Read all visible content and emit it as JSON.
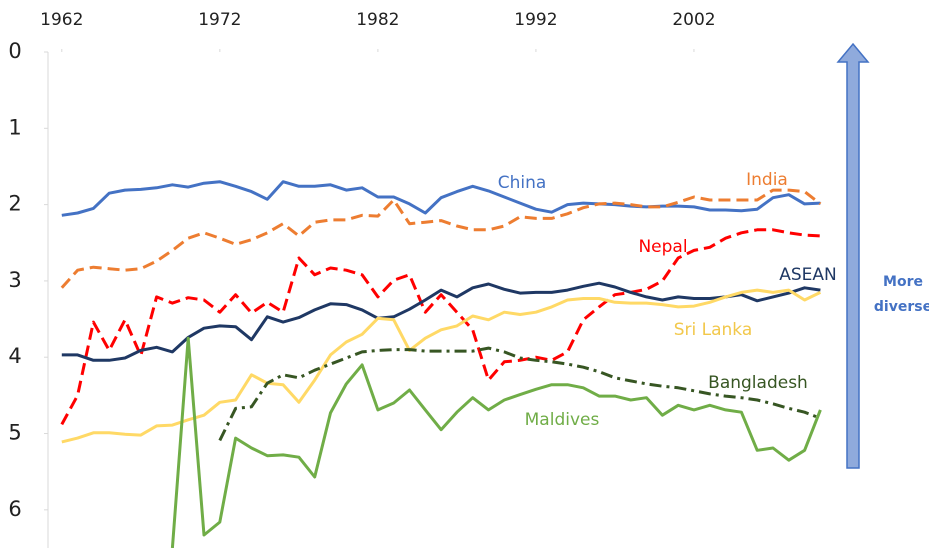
{
  "chart_data": {
    "type": "line",
    "x": [
      1962,
      1963,
      1964,
      1965,
      1966,
      1967,
      1968,
      1969,
      1970,
      1971,
      1972,
      1973,
      1974,
      1975,
      1976,
      1977,
      1978,
      1979,
      1980,
      1981,
      1982,
      1983,
      1984,
      1985,
      1986,
      1987,
      1988,
      1989,
      1990,
      1991,
      1992,
      1993,
      1994,
      1995,
      1996,
      1997,
      1998,
      1999,
      2000,
      2001,
      2002,
      2003,
      2004,
      2005,
      2006,
      2007,
      2008,
      2009,
      2010
    ],
    "xlim": [
      1961,
      2012
    ],
    "xticks": [
      1962,
      1972,
      1982,
      1992,
      2002
    ],
    "ylim": [
      0,
      6.5
    ],
    "yticks": [
      0,
      1,
      2,
      3,
      4,
      5,
      6
    ],
    "y_inverted": true,
    "arrow_label": [
      "More",
      "diverse"
    ],
    "series": [
      {
        "name": "China",
        "color": "#4472c4",
        "style": "solid",
        "values": [
          2.14,
          2.11,
          2.05,
          1.85,
          1.81,
          1.8,
          1.78,
          1.74,
          1.77,
          1.72,
          1.7,
          1.76,
          1.83,
          1.93,
          1.7,
          1.76,
          1.76,
          1.74,
          1.81,
          1.78,
          1.9,
          1.9,
          1.99,
          2.11,
          1.91,
          1.83,
          1.76,
          1.82,
          1.9,
          1.98,
          2.06,
          2.1,
          2.0,
          1.98,
          1.99,
          2.0,
          2.02,
          2.03,
          2.02,
          2.02,
          2.03,
          2.07,
          2.07,
          2.08,
          2.06,
          1.91,
          1.87,
          1.99,
          1.98
        ]
      },
      {
        "name": "India",
        "color": "#ed7d31",
        "style": "dashed",
        "values": [
          3.09,
          2.86,
          2.82,
          2.84,
          2.86,
          2.84,
          2.74,
          2.6,
          2.44,
          2.37,
          2.44,
          2.52,
          2.46,
          2.37,
          2.25,
          2.41,
          2.23,
          2.2,
          2.2,
          2.14,
          2.15,
          1.94,
          2.25,
          2.23,
          2.21,
          2.28,
          2.33,
          2.33,
          2.28,
          2.16,
          2.18,
          2.18,
          2.12,
          2.04,
          1.99,
          1.98,
          2.0,
          2.03,
          2.03,
          1.97,
          1.9,
          1.94,
          1.94,
          1.94,
          1.94,
          1.81,
          1.81,
          1.83,
          1.99
        ]
      },
      {
        "name": "Nepal",
        "color": "#ff0000",
        "style": "dashed",
        "values": [
          4.88,
          4.5,
          3.54,
          3.91,
          3.51,
          3.98,
          3.21,
          3.29,
          3.22,
          3.25,
          3.41,
          3.18,
          3.42,
          3.28,
          3.41,
          2.7,
          2.92,
          2.83,
          2.86,
          2.92,
          3.21,
          2.99,
          2.92,
          3.41,
          3.18,
          3.41,
          3.64,
          4.3,
          4.06,
          4.04,
          4.0,
          4.04,
          3.93,
          3.51,
          3.34,
          3.18,
          3.15,
          3.11,
          3.0,
          2.7,
          2.6,
          2.56,
          2.44,
          2.37,
          2.33,
          2.33,
          2.37,
          2.4,
          2.41
        ]
      },
      {
        "name": "ASEAN",
        "color": "#1f3864",
        "style": "solid",
        "values": [
          3.97,
          3.97,
          4.04,
          4.04,
          4.01,
          3.91,
          3.87,
          3.93,
          3.74,
          3.62,
          3.59,
          3.6,
          3.77,
          3.47,
          3.54,
          3.48,
          3.38,
          3.3,
          3.31,
          3.38,
          3.49,
          3.47,
          3.37,
          3.25,
          3.12,
          3.21,
          3.09,
          3.04,
          3.11,
          3.16,
          3.15,
          3.15,
          3.12,
          3.07,
          3.03,
          3.08,
          3.15,
          3.21,
          3.25,
          3.21,
          3.23,
          3.23,
          3.21,
          3.18,
          3.26,
          3.21,
          3.16,
          3.09,
          3.12
        ]
      },
      {
        "name": "Sri Lanka",
        "color": "#ffd966",
        "style": "solid",
        "values": [
          5.11,
          5.06,
          4.99,
          4.99,
          5.01,
          5.02,
          4.9,
          4.89,
          4.82,
          4.76,
          4.59,
          4.56,
          4.23,
          4.34,
          4.36,
          4.59,
          4.3,
          3.97,
          3.8,
          3.7,
          3.49,
          3.51,
          3.91,
          3.75,
          3.64,
          3.59,
          3.46,
          3.51,
          3.41,
          3.44,
          3.41,
          3.34,
          3.25,
          3.23,
          3.23,
          3.28,
          3.29,
          3.29,
          3.31,
          3.34,
          3.33,
          3.28,
          3.21,
          3.15,
          3.12,
          3.15,
          3.12,
          3.25,
          3.15
        ]
      },
      {
        "name": "Bangladesh",
        "color": "#375623",
        "style": "dashdot",
        "values": [
          null,
          null,
          null,
          null,
          null,
          null,
          null,
          null,
          null,
          null,
          5.09,
          4.67,
          4.65,
          4.34,
          4.23,
          4.27,
          4.17,
          4.09,
          4.01,
          3.93,
          3.91,
          3.9,
          3.9,
          3.92,
          3.92,
          3.92,
          3.92,
          3.88,
          3.93,
          4.01,
          4.04,
          4.06,
          4.09,
          4.13,
          4.19,
          4.27,
          4.31,
          4.35,
          4.38,
          4.4,
          4.44,
          4.48,
          4.51,
          4.53,
          4.56,
          4.61,
          4.67,
          4.72,
          4.8
        ]
      },
      {
        "name": "Maldives",
        "color": "#70ad47",
        "style": "solid",
        "values": [
          null,
          null,
          null,
          null,
          null,
          null,
          null,
          6.5,
          3.75,
          6.33,
          6.16,
          5.06,
          5.19,
          5.29,
          5.28,
          5.31,
          5.57,
          4.73,
          4.35,
          4.1,
          4.69,
          4.6,
          4.43,
          4.69,
          4.95,
          4.72,
          4.53,
          4.69,
          4.56,
          4.49,
          4.42,
          4.36,
          4.36,
          4.4,
          4.51,
          4.51,
          4.56,
          4.53,
          4.76,
          4.63,
          4.69,
          4.63,
          4.69,
          4.72,
          5.22,
          5.19,
          5.35,
          5.22,
          4.69
        ]
      }
    ]
  }
}
